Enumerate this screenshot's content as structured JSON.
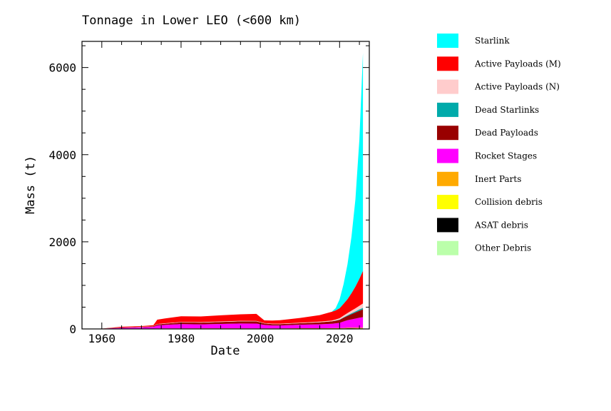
{
  "chart_data": {
    "type": "area",
    "title": "Tonnage in Lower LEO (<600 km)",
    "xlabel": "Date",
    "ylabel": "Mass (t)",
    "xlim": [
      1955,
      2027.5
    ],
    "ylim": [
      0,
      6600
    ],
    "xticks": [
      1960,
      1980,
      2000,
      2020
    ],
    "yticks": [
      0,
      2000,
      4000,
      6000
    ],
    "stacked": true,
    "legend_position": "right",
    "x": [
      1957,
      1960,
      1965,
      1970,
      1973,
      1974,
      1976,
      1978,
      1980,
      1985,
      1990,
      1995,
      1999,
      2001,
      2003,
      2005,
      2010,
      2015,
      2018,
      2019,
      2020,
      2021,
      2022,
      2023,
      2024,
      2025,
      2025.9
    ],
    "series": [
      {
        "name": "Other Debris",
        "color": "#bbffaa",
        "values": [
          0,
          1,
          2,
          3,
          4,
          5,
          5,
          5,
          5,
          6,
          6,
          6,
          6,
          5,
          5,
          5,
          6,
          6,
          6,
          6,
          6,
          6,
          6,
          6,
          6,
          6,
          6
        ]
      },
      {
        "name": "ASAT debris",
        "color": "#000000",
        "values": [
          0,
          0,
          0,
          0,
          0,
          0,
          0,
          0,
          0,
          2,
          2,
          1,
          0,
          0,
          0,
          0,
          1,
          1,
          1,
          1,
          1,
          2,
          8,
          8,
          5,
          4,
          4
        ]
      },
      {
        "name": "Collision debris",
        "color": "#ffff00",
        "values": [
          0,
          0,
          0,
          0,
          0,
          0,
          0,
          0,
          0,
          0,
          0,
          0,
          0,
          0,
          0,
          0,
          2,
          2,
          2,
          2,
          2,
          2,
          2,
          2,
          2,
          2,
          2
        ]
      },
      {
        "name": "Inert Parts",
        "color": "#ffaa00",
        "values": [
          0,
          1,
          2,
          3,
          4,
          5,
          6,
          6,
          6,
          7,
          7,
          7,
          7,
          6,
          6,
          6,
          7,
          8,
          9,
          10,
          11,
          12,
          13,
          14,
          15,
          16,
          18
        ]
      },
      {
        "name": "Rocket Stages",
        "color": "#ff00ff",
        "values": [
          0,
          4,
          20,
          30,
          40,
          70,
          80,
          90,
          100,
          90,
          100,
          110,
          110,
          80,
          70,
          70,
          80,
          90,
          100,
          110,
          120,
          150,
          170,
          190,
          210,
          230,
          240
        ]
      },
      {
        "name": "Dead Payloads",
        "color": "#990000",
        "values": [
          0,
          1,
          8,
          10,
          12,
          25,
          30,
          35,
          40,
          40,
          45,
          50,
          50,
          35,
          30,
          30,
          35,
          45,
          55,
          60,
          70,
          85,
          100,
          120,
          140,
          160,
          180
        ]
      },
      {
        "name": "Dead Starlinks",
        "color": "#00aaaa",
        "values": [
          0,
          0,
          0,
          0,
          0,
          0,
          0,
          0,
          0,
          0,
          0,
          0,
          0,
          0,
          0,
          0,
          0,
          0,
          0,
          2,
          5,
          10,
          15,
          20,
          25,
          30,
          35
        ]
      },
      {
        "name": "Active Payloads (N)",
        "color": "#ffcccc",
        "values": [
          0,
          1,
          3,
          5,
          6,
          8,
          10,
          10,
          10,
          12,
          12,
          12,
          12,
          10,
          10,
          10,
          12,
          15,
          20,
          25,
          30,
          40,
          50,
          60,
          70,
          85,
          100
        ]
      },
      {
        "name": "Active Payloads (M)",
        "color": "#ff0000",
        "values": [
          0,
          1,
          15,
          15,
          20,
          100,
          110,
          120,
          130,
          130,
          140,
          150,
          160,
          60,
          70,
          80,
          110,
          150,
          200,
          210,
          230,
          270,
          320,
          400,
          500,
          620,
          750
        ]
      },
      {
        "name": "Starlink",
        "color": "#00ffff",
        "values": [
          0,
          0,
          0,
          0,
          0,
          0,
          0,
          0,
          0,
          0,
          0,
          0,
          0,
          0,
          0,
          0,
          0,
          0,
          0,
          50,
          200,
          450,
          800,
          1300,
          2000,
          3200,
          5000
        ]
      }
    ]
  }
}
